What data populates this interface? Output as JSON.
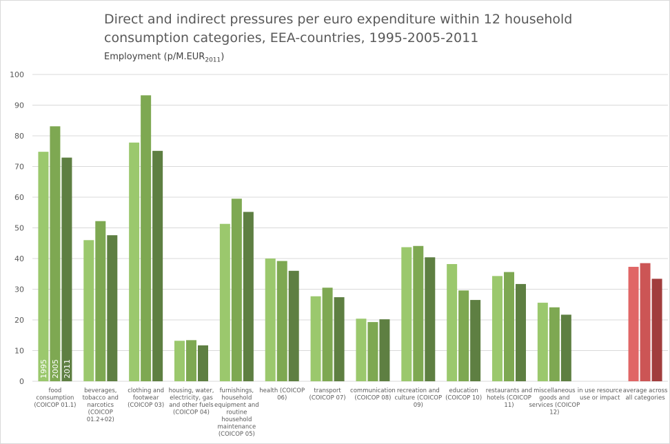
{
  "chart_data": {
    "type": "bar",
    "title": "Direct and indirect pressures per euro expenditure within 12 household consumption categories, EEA-countries, 1995-2005-2011",
    "subtitle_main": "Employment (p/M.EUR",
    "subtitle_sub": "2011",
    "subtitle_end": ")",
    "ylim": [
      0,
      100
    ],
    "yticks": [
      0,
      10,
      20,
      30,
      40,
      50,
      60,
      70,
      80,
      90,
      100
    ],
    "grid": true,
    "categories": [
      [
        "food",
        "consumption",
        "(COICOP 01.1)"
      ],
      [
        "beverages,",
        "tobacco and",
        "narcotics",
        "(COICOP",
        "01.2+02)"
      ],
      [
        "clothing and",
        "footwear",
        "(COICOP 03)"
      ],
      [
        "housing, water,",
        "electricity, gas",
        "and other fuels",
        "(COICOP 04)"
      ],
      [
        "furnishings,",
        "household",
        "equipment and",
        "routine",
        "household",
        "maintenance",
        "(COICOP 05)"
      ],
      [
        "health (COICOP",
        "06)"
      ],
      [
        "transport",
        "(COICOP 07)"
      ],
      [
        "communication",
        "(COICOP 08)"
      ],
      [
        "recreation and",
        "culture (COICOP",
        "09)"
      ],
      [
        "education",
        "(COICOP 10)"
      ],
      [
        "restaurants and",
        "hotels (COICOP",
        "11)"
      ],
      [
        "miscellaneous",
        "goods and",
        "services (COICOP",
        "12)"
      ],
      [
        "in use resource",
        "use or impact"
      ],
      [
        "average across",
        "all categories"
      ]
    ],
    "series": [
      {
        "name": "1995",
        "values": [
          74.8,
          46.0,
          77.8,
          13.2,
          51.3,
          40.0,
          27.7,
          20.4,
          43.7,
          38.2,
          34.3,
          25.6,
          null,
          37.3
        ]
      },
      {
        "name": "2005",
        "values": [
          83.1,
          52.2,
          93.2,
          13.4,
          59.5,
          39.2,
          30.5,
          19.3,
          44.1,
          29.6,
          35.6,
          24.1,
          null,
          38.5
        ]
      },
      {
        "name": "2011",
        "values": [
          72.9,
          47.6,
          75.1,
          11.7,
          55.2,
          36.0,
          27.4,
          20.2,
          40.4,
          26.5,
          31.7,
          21.7,
          null,
          33.4
        ]
      }
    ],
    "colors": {
      "1995": "#9bc86d",
      "2005": "#7ea852",
      "2011": "#5e7f42",
      "avg_1995": "#e06666",
      "avg_2005": "#cc5555",
      "avg_2011": "#a13d3d",
      "grid": "#d9d9d9",
      "axis_text": "#595959"
    }
  }
}
